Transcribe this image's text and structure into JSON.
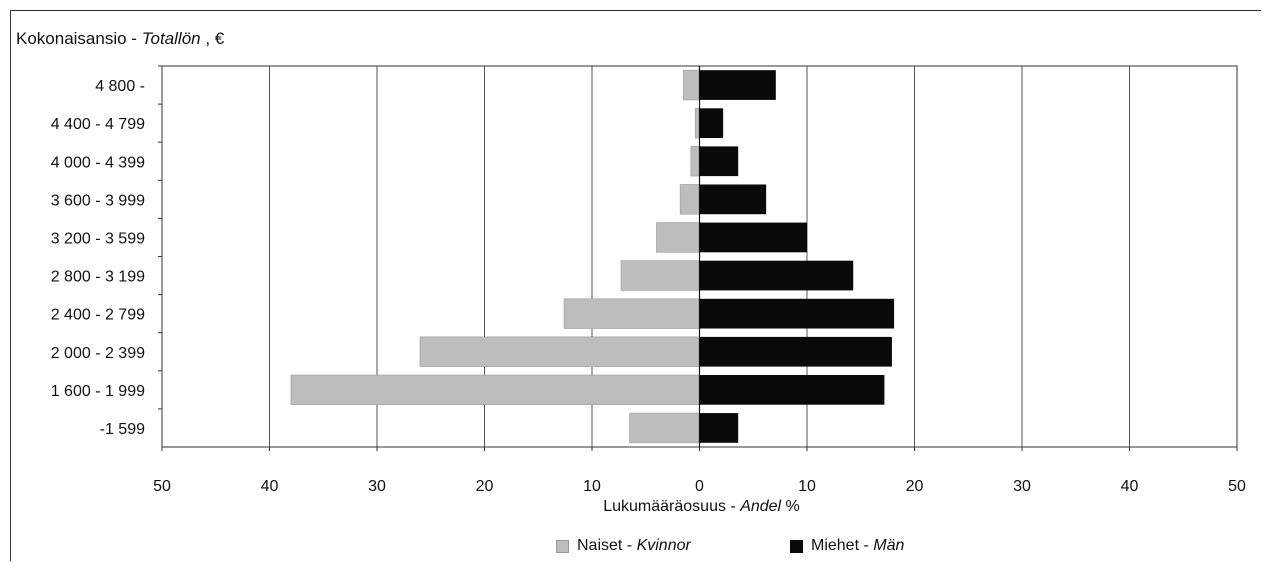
{
  "title": {
    "main": "Kokonaisansio - ",
    "italic": "Totallön",
    "suffix": " , €"
  },
  "xaxis": {
    "main": "Lukumääräosuus - ",
    "italic": "Andel",
    "suffix": "  %"
  },
  "legend": {
    "women": {
      "main": "Naiset - ",
      "italic": "Kvinnor"
    },
    "men": {
      "main": "Miehet - ",
      "italic": "Män"
    }
  },
  "chart_data": {
    "type": "bar",
    "orientation": "horizontal",
    "categories": [
      "4 800 -",
      "4 400 - 4 799",
      "4 000 - 4 399",
      "3 600 - 3 999",
      "3 200 - 3 599",
      "2 800 - 3 199",
      "2 400 - 2 799",
      "2 000 - 2 399",
      "1 600 - 1 999",
      "-1 599"
    ],
    "series": [
      {
        "name": "Naiset - Kvinnor",
        "values": [
          1.5,
          0.4,
          0.8,
          1.8,
          4.0,
          7.3,
          12.6,
          26.0,
          38.0,
          6.5
        ],
        "side": "left",
        "color": "#bdbdbd"
      },
      {
        "name": "Miehet - Män",
        "values": [
          7.1,
          2.2,
          3.6,
          6.2,
          10.0,
          14.3,
          18.1,
          17.9,
          17.2,
          3.6
        ],
        "side": "right",
        "color": "#0a0a0a"
      }
    ],
    "xticks": [
      "50",
      "40",
      "30",
      "20",
      "10",
      "0",
      "10",
      "20",
      "30",
      "40",
      "50"
    ],
    "xlim": [
      -50,
      50
    ],
    "grid": true,
    "legend_position": "bottom"
  }
}
